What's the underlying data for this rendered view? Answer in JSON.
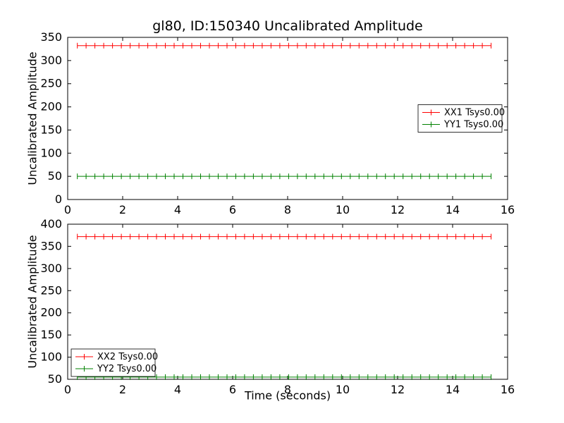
{
  "figure": {
    "background": "#ffffff",
    "frame_color": "#000000",
    "text_color": "#000000"
  },
  "chart_data": [
    {
      "type": "line",
      "title": "gl80, ID:150340 Uncalibrated Amplitude",
      "xlabel": "",
      "ylabel": "Uncalibrated Amplitude",
      "xlim": [
        0,
        16
      ],
      "ylim": [
        0,
        350
      ],
      "xticks": [
        0,
        2,
        4,
        6,
        8,
        10,
        12,
        14,
        16
      ],
      "yticks": [
        0,
        50,
        100,
        150,
        200,
        250,
        300,
        350
      ],
      "grid": false,
      "x_start": 0.35,
      "x_end": 15.4,
      "n_points": 48,
      "marker": "errorbar-tick",
      "legend_position": "center-right",
      "series": [
        {
          "name": "XX1 Tsys0.00",
          "color": "#ff0000",
          "value": 332
        },
        {
          "name": "YY1 Tsys0.00",
          "color": "#008000",
          "value": 50
        }
      ]
    },
    {
      "type": "line",
      "title": "",
      "xlabel": "Time (seconds)",
      "ylabel": "Uncalibrated Amplitude",
      "xlim": [
        0,
        16
      ],
      "ylim": [
        50,
        400
      ],
      "xticks": [
        0,
        2,
        4,
        6,
        8,
        10,
        12,
        14,
        16
      ],
      "yticks": [
        50,
        100,
        150,
        200,
        250,
        300,
        350,
        400
      ],
      "grid": false,
      "x_start": 0.35,
      "x_end": 15.4,
      "n_points": 48,
      "marker": "errorbar-tick",
      "legend_position": "lower-left",
      "series": [
        {
          "name": "XX2 Tsys0.00",
          "color": "#ff0000",
          "value": 372
        },
        {
          "name": "YY2 Tsys0.00",
          "color": "#008000",
          "value": 55
        }
      ]
    }
  ]
}
